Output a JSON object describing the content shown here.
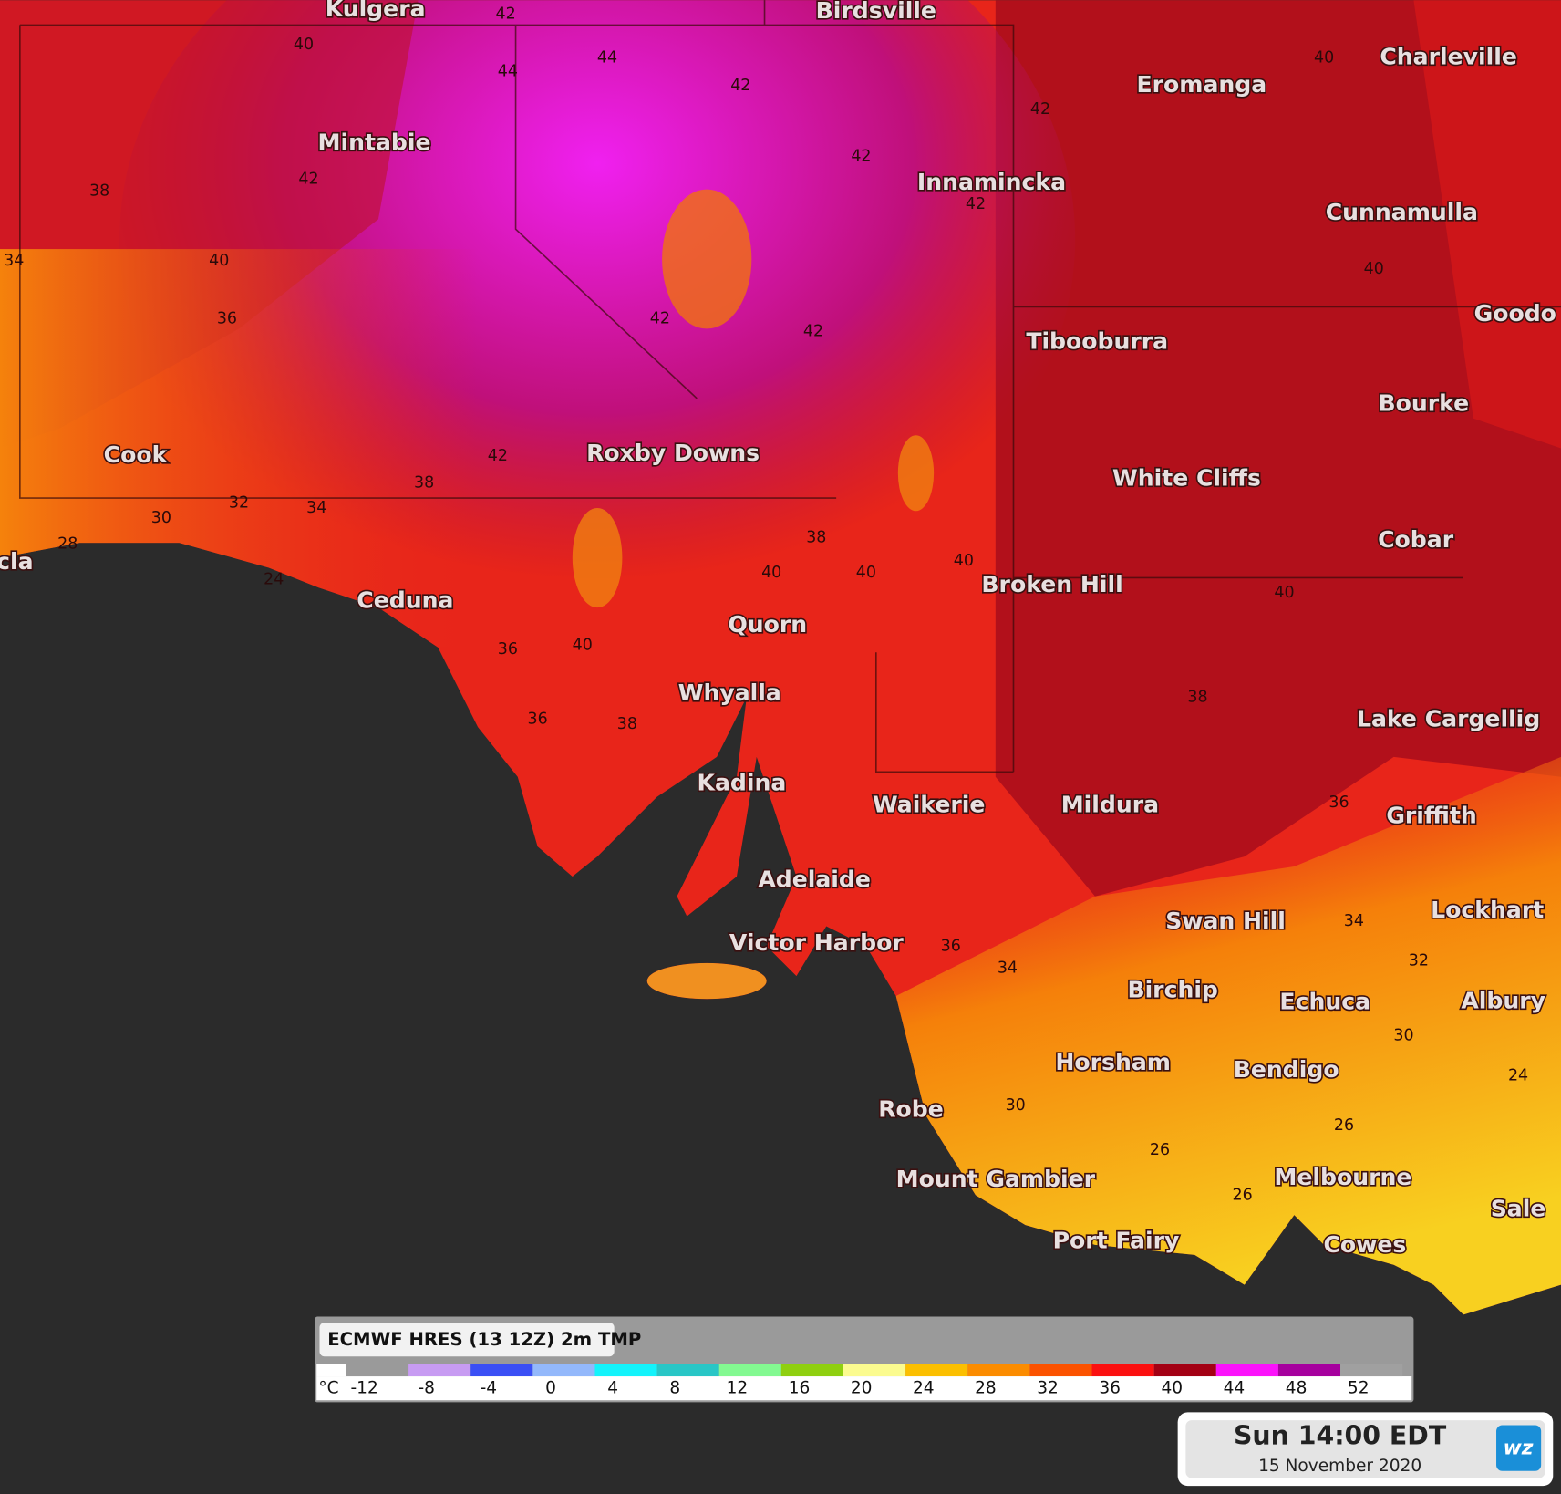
{
  "map": {
    "places": [
      "Kulgera",
      "Birdsville",
      "Charleville",
      "Eromanga",
      "Mintabie",
      "Innamincka",
      "Cunnamulla",
      "Goodo",
      "Tibooburra",
      "Bourke",
      "Cook",
      "Roxby Downs",
      "White Cliffs",
      "Cobar",
      "cla",
      "Broken Hill",
      "Ceduna",
      "Quorn",
      "Whyalla",
      "Lake Cargellig",
      "Kadina",
      "Waikerie",
      "Mildura",
      "Griffith",
      "Adelaide",
      "Swan Hill",
      "Lockhart",
      "Victor Harbor",
      "Birchip",
      "Echuca",
      "Albury",
      "Horsham",
      "Bendigo",
      "Robe",
      "Mount Gambier",
      "Melbourne",
      "Sale",
      "Port Fairy",
      "Cowes"
    ],
    "contour_labels": [
      42,
      40,
      44,
      44,
      42,
      42,
      38,
      40,
      36,
      34,
      42,
      42,
      42,
      42,
      42,
      42,
      38,
      34,
      32,
      30,
      28,
      24,
      40,
      40,
      38,
      40,
      40,
      36,
      36,
      38,
      40,
      38,
      36,
      34,
      32,
      30,
      26,
      26,
      26,
      24,
      34,
      36,
      40,
      40,
      30
    ]
  },
  "legend": {
    "title": "ECMWF HRES (13 12Z) 2m TMP",
    "unit": "°C",
    "ticks": [
      -12,
      -8,
      -4,
      0,
      4,
      8,
      12,
      16,
      20,
      24,
      28,
      32,
      36,
      40,
      44,
      48,
      52
    ],
    "colors": [
      "#ffffff",
      "#9a9a9a",
      "#c79bf2",
      "#3a4ff5",
      "#93b8fb",
      "#13f3fb",
      "#29c6c6",
      "#83f991",
      "#8fcf10",
      "#fbfb8f",
      "#fbbf00",
      "#fb8c00",
      "#fb5200",
      "#fb1010",
      "#a30014",
      "#fb12fb",
      "#a6009e",
      "#a0a0a0"
    ]
  },
  "timestamp": {
    "time": "Sun 14:00 EDT",
    "date": "15 November 2020",
    "logo": "wz"
  }
}
